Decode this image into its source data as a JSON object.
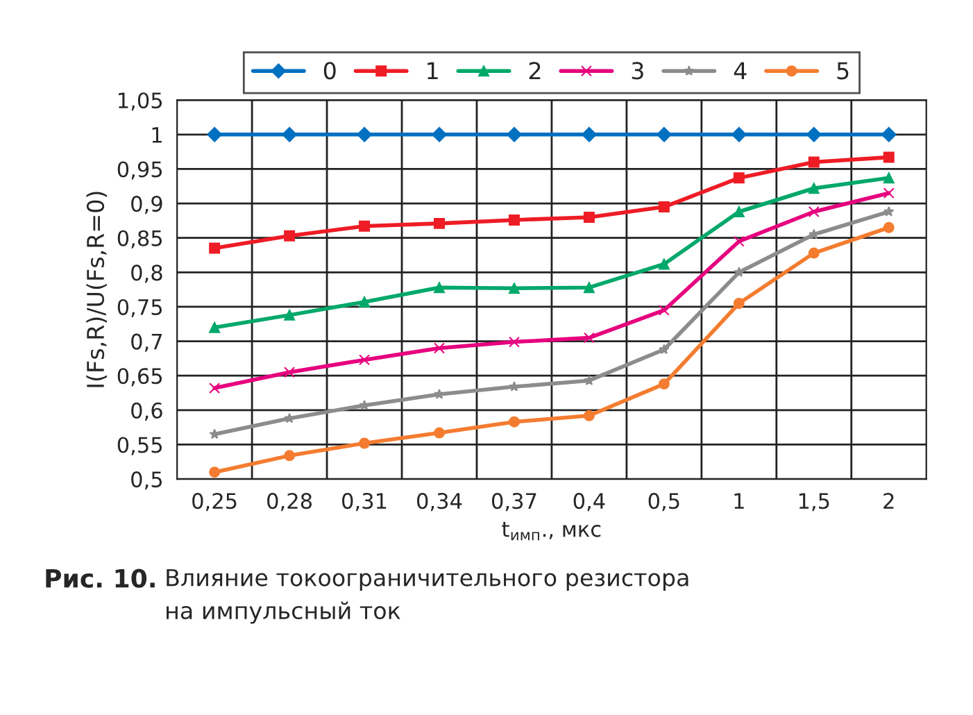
{
  "chart_data": {
    "type": "line",
    "xlabel": "t$_{имп}$., мкс",
    "ylabel": "I(Fs,R)/U(Fs,R=0)",
    "categories": [
      "0,25",
      "0,28",
      "0,31",
      "0,34",
      "0,37",
      "0,4",
      "0,5",
      "1",
      "1,5",
      "2"
    ],
    "ylim": [
      0.5,
      1.05
    ],
    "yticks": [
      {
        "value": 0.5,
        "label": "0,5"
      },
      {
        "value": 0.55,
        "label": "0,55"
      },
      {
        "value": 0.6,
        "label": "0,6"
      },
      {
        "value": 0.65,
        "label": "0,65"
      },
      {
        "value": 0.7,
        "label": "0,7"
      },
      {
        "value": 0.75,
        "label": "0,75"
      },
      {
        "value": 0.8,
        "label": "0,8"
      },
      {
        "value": 0.85,
        "label": "0,85"
      },
      {
        "value": 0.9,
        "label": "0,9"
      },
      {
        "value": 0.95,
        "label": "0,95"
      },
      {
        "value": 1,
        "label": "1"
      },
      {
        "value": 1.05,
        "label": "1,05"
      }
    ],
    "grid": true,
    "legend": "top",
    "line_style": "solid",
    "series": [
      {
        "name": "0",
        "color": "#0070c0",
        "marker": "diamond",
        "values": [
          1,
          1,
          1,
          1,
          1,
          1,
          1,
          1,
          1,
          1
        ]
      },
      {
        "name": "1",
        "color": "#ee1c25",
        "marker": "square",
        "values": [
          0.835,
          0.853,
          0.867,
          0.871,
          0.876,
          0.88,
          0.895,
          0.937,
          0.96,
          0.967
        ]
      },
      {
        "name": "2",
        "color": "#00a86b",
        "marker": "triangle",
        "values": [
          0.72,
          0.738,
          0.757,
          0.778,
          0.777,
          0.778,
          0.812,
          0.888,
          0.922,
          0.937
        ]
      },
      {
        "name": "3",
        "color": "#e6007e",
        "marker": "cross",
        "values": [
          0.632,
          0.655,
          0.673,
          0.69,
          0.699,
          0.705,
          0.745,
          0.845,
          0.888,
          0.915
        ]
      },
      {
        "name": "4",
        "color": "#8c8c8c",
        "marker": "star",
        "values": [
          0.565,
          0.588,
          0.607,
          0.623,
          0.634,
          0.643,
          0.688,
          0.8,
          0.855,
          0.888
        ]
      },
      {
        "name": "5",
        "color": "#f47c30",
        "marker": "circle",
        "values": [
          0.51,
          0.534,
          0.552,
          0.567,
          0.583,
          0.592,
          0.638,
          0.755,
          0.828,
          0.865
        ]
      }
    ],
    "annotations": [
      "Рис. 10.",
      "Влияние токоограничительного резистора\nна импульсный ток"
    ]
  }
}
